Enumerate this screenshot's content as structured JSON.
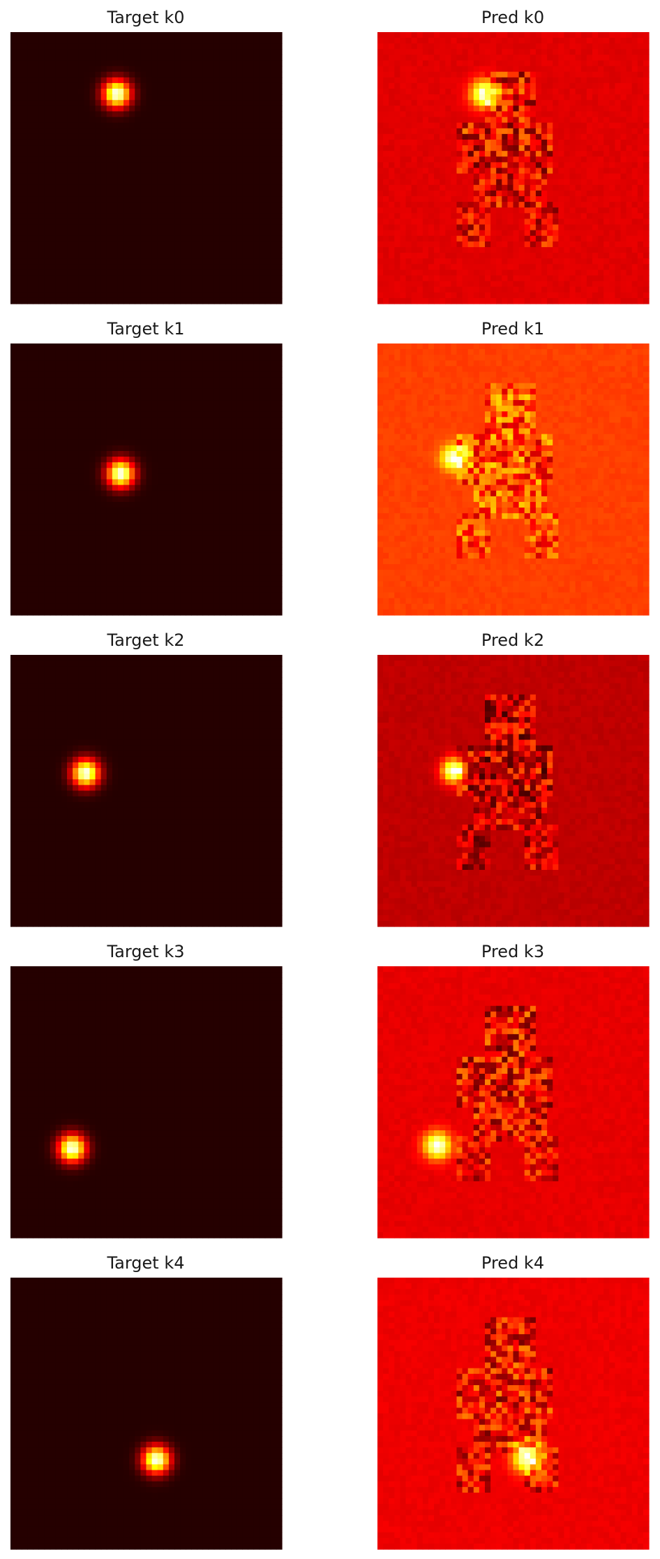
{
  "figure": {
    "background": "#ffffff",
    "colormap": "hot"
  },
  "chart_data": [
    {
      "type": "heatmap",
      "title": "Target k0",
      "grid_size": 48,
      "peak": {
        "x": 18.8,
        "y": 10.9,
        "sigma": 1.7
      },
      "base_level": 0.04,
      "noise": false
    },
    {
      "type": "heatmap",
      "title": "Pred k0",
      "grid_size": 48,
      "peak": {
        "x": 18.9,
        "y": 10.9,
        "sigma": 1.7
      },
      "base_level": 0.32,
      "noise": true,
      "seed": 11
    },
    {
      "type": "heatmap",
      "title": "Target k1",
      "grid_size": 48,
      "peak": {
        "x": 19.5,
        "y": 23.0,
        "sigma": 1.7
      },
      "base_level": 0.04,
      "noise": false
    },
    {
      "type": "heatmap",
      "title": "Pred k1",
      "grid_size": 48,
      "peak": {
        "x": 13.5,
        "y": 20.2,
        "sigma": 1.5
      },
      "base_level": 0.46,
      "noise": true,
      "seed": 23
    },
    {
      "type": "heatmap",
      "title": "Target k2",
      "grid_size": 48,
      "peak": {
        "x": 13.3,
        "y": 20.9,
        "sigma": 1.7
      },
      "base_level": 0.04,
      "noise": false
    },
    {
      "type": "heatmap",
      "title": "Pred k2",
      "grid_size": 48,
      "peak": {
        "x": 13.5,
        "y": 20.5,
        "sigma": 1.5
      },
      "base_level": 0.27,
      "noise": true,
      "seed": 37
    },
    {
      "type": "heatmap",
      "title": "Target k3",
      "grid_size": 48,
      "peak": {
        "x": 10.9,
        "y": 32.2,
        "sigma": 1.7
      },
      "base_level": 0.04,
      "noise": false
    },
    {
      "type": "heatmap",
      "title": "Pred k3",
      "grid_size": 48,
      "peak": {
        "x": 10.6,
        "y": 31.7,
        "sigma": 1.7
      },
      "base_level": 0.33,
      "noise": true,
      "seed": 41
    },
    {
      "type": "heatmap",
      "title": "Target k4",
      "grid_size": 48,
      "peak": {
        "x": 25.8,
        "y": 32.2,
        "sigma": 1.7
      },
      "base_level": 0.04,
      "noise": false
    },
    {
      "type": "heatmap",
      "title": "Pred k4",
      "grid_size": 48,
      "peak": {
        "x": 26.5,
        "y": 31.9,
        "sigma": 1.8
      },
      "base_level": 0.34,
      "noise": true,
      "seed": 53
    }
  ]
}
